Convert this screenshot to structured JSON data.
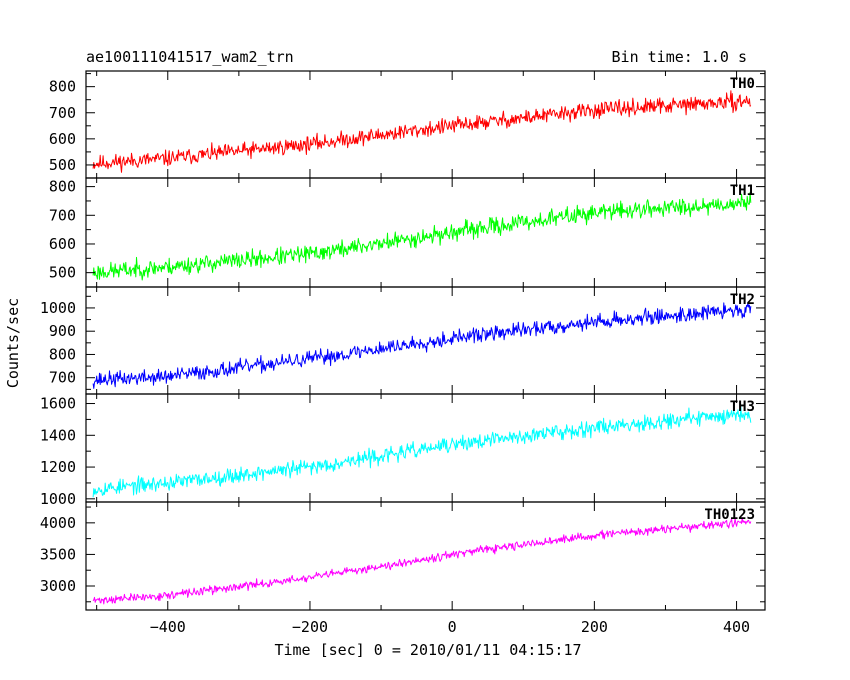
{
  "header": {
    "title": "ae100111041517_wam2_trn",
    "bin_time": "Bin time: 1.0 s"
  },
  "chart_data": {
    "type": "line",
    "title": "ae100111041517_wam2_trn",
    "subtitle": "Bin time: 1.0 s",
    "xlabel": "Time [sec] 0 = 2010/01/11 04:15:17",
    "ylabel": "Counts/sec",
    "xlim": [
      -515,
      440
    ],
    "x_ticks": [
      -400,
      -200,
      0,
      200,
      400
    ],
    "x_tick_labels": [
      "−400",
      "−200",
      "0",
      "200",
      "400"
    ],
    "x_range": [
      -505,
      420
    ],
    "grid": false,
    "series": [
      {
        "name": "TH0",
        "color": "#ff0000",
        "ylim": [
          450,
          860
        ],
        "y_ticks": [
          500,
          600,
          700,
          800
        ],
        "trend": [
          [
            -505,
            505
          ],
          [
            -400,
            525
          ],
          [
            -200,
            580
          ],
          [
            0,
            650
          ],
          [
            200,
            710
          ],
          [
            420,
            745
          ]
        ],
        "noise": 28,
        "seed": 11
      },
      {
        "name": "TH1",
        "color": "#00ff00",
        "ylim": [
          450,
          830
        ],
        "y_ticks": [
          500,
          600,
          700,
          800
        ],
        "trend": [
          [
            -505,
            500
          ],
          [
            -400,
            520
          ],
          [
            -200,
            565
          ],
          [
            0,
            640
          ],
          [
            200,
            710
          ],
          [
            420,
            745
          ]
        ],
        "noise": 28,
        "seed": 23
      },
      {
        "name": "TH2",
        "color": "#0000ff",
        "ylim": [
          630,
          1090
        ],
        "y_ticks": [
          700,
          800,
          900,
          1000
        ],
        "trend": [
          [
            -505,
            690
          ],
          [
            -400,
            705
          ],
          [
            -200,
            780
          ],
          [
            0,
            870
          ],
          [
            200,
            940
          ],
          [
            420,
            995
          ]
        ],
        "noise": 30,
        "seed": 37
      },
      {
        "name": "TH3",
        "color": "#00ffff",
        "ylim": [
          980,
          1660
        ],
        "y_ticks": [
          1000,
          1200,
          1400,
          1600
        ],
        "trend": [
          [
            -505,
            1060
          ],
          [
            -400,
            1100
          ],
          [
            -200,
            1200
          ],
          [
            0,
            1340
          ],
          [
            200,
            1450
          ],
          [
            420,
            1540
          ]
        ],
        "noise": 45,
        "seed": 53
      },
      {
        "name": "TH0123",
        "color": "#ff00ff",
        "ylim": [
          2620,
          4330
        ],
        "y_ticks": [
          3000,
          3500,
          4000
        ],
        "trend": [
          [
            -505,
            2770
          ],
          [
            -400,
            2850
          ],
          [
            -200,
            3130
          ],
          [
            0,
            3500
          ],
          [
            200,
            3800
          ],
          [
            420,
            4020
          ]
        ],
        "noise": 60,
        "seed": 71
      }
    ]
  }
}
